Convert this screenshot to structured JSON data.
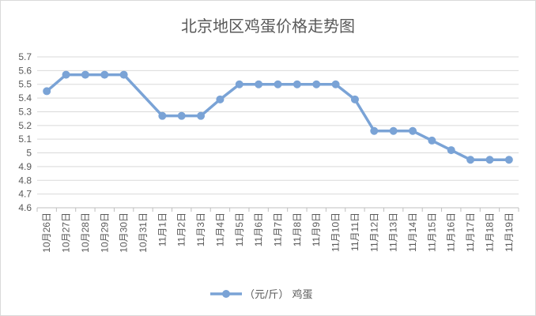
{
  "chart_data": {
    "type": "line",
    "title": "北京地区鸡蛋价格走势图",
    "xlabel": "",
    "ylabel": "",
    "categories": [
      "10月26日",
      "10月27日",
      "10月28日",
      "10月29日",
      "10月30日",
      "10月31日",
      "11月1日",
      "11月2日",
      "11月3日",
      "11月4日",
      "11月5日",
      "11月6日",
      "11月7日",
      "11月8日",
      "11月9日",
      "11月10日",
      "11月11日",
      "11月12日",
      "11月13日",
      "11月14日",
      "11月15日",
      "11月16日",
      "11月17日",
      "11月18日",
      "11月19日"
    ],
    "series": [
      {
        "name": "（元/斤） 鸡蛋",
        "values": [
          5.45,
          5.57,
          5.57,
          5.57,
          5.57,
          null,
          5.27,
          5.27,
          5.27,
          5.39,
          5.5,
          5.5,
          5.5,
          5.5,
          5.5,
          5.5,
          5.39,
          5.16,
          5.16,
          5.16,
          5.09,
          5.02,
          4.95,
          4.95,
          4.95
        ]
      }
    ],
    "ylim": [
      4.6,
      5.7
    ],
    "yticks": [
      "4.6",
      "4.7",
      "4.8",
      "4.9",
      "5",
      "5.1",
      "5.2",
      "5.3",
      "5.4",
      "5.5",
      "5.6",
      "5.7"
    ],
    "grid": true,
    "legend": "bottom",
    "colors": {
      "series": "#7aa3d6",
      "grid": "#d9d9d9",
      "axis": "#bfbfbf",
      "text": "#595959"
    }
  }
}
